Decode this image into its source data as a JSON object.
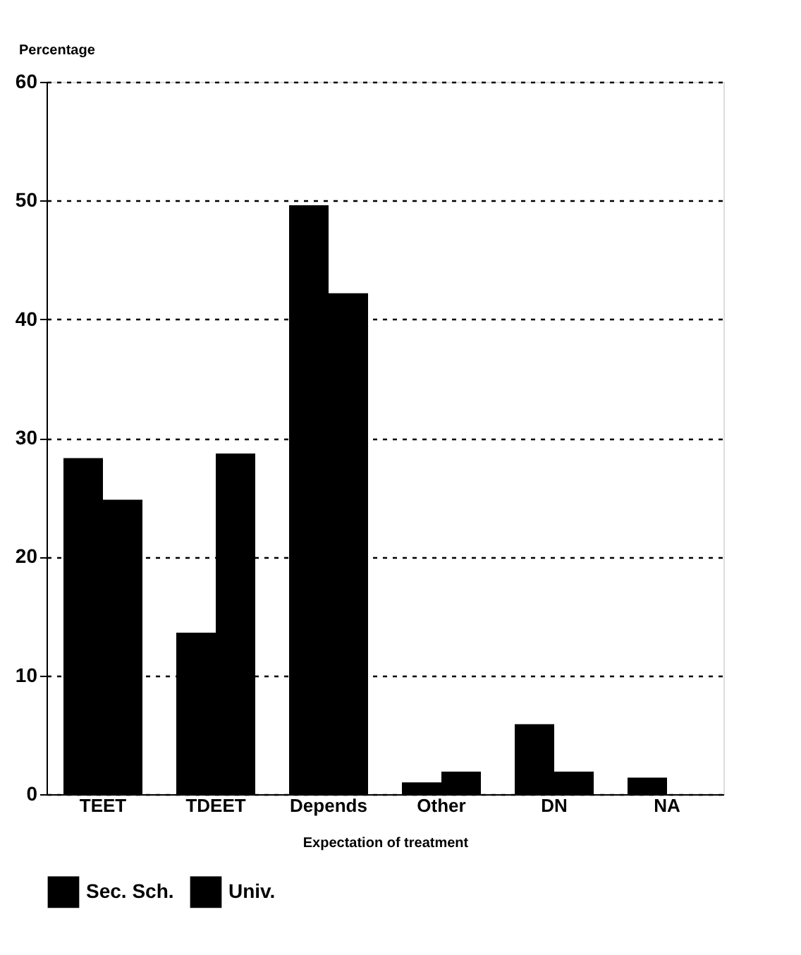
{
  "chart_data": {
    "type": "bar",
    "xlabel": "Expectation of treatment",
    "ylabel": "Percentage",
    "categories": [
      "TEET",
      "TDEET",
      "Depends",
      "Other",
      "DN",
      "NA"
    ],
    "series": [
      {
        "name": "Sec. Sch.",
        "color": "#000000",
        "values": [
          28.3,
          13.6,
          49.6,
          1.0,
          5.9,
          1.4
        ]
      },
      {
        "name": "Univ.",
        "color": "#000000",
        "values": [
          24.8,
          28.7,
          42.2,
          1.9,
          1.9,
          null
        ]
      }
    ],
    "ylim": [
      0,
      60
    ],
    "yticks": [
      0,
      10,
      20,
      30,
      40,
      50,
      60
    ],
    "grid": "y",
    "legend": "bottom"
  }
}
